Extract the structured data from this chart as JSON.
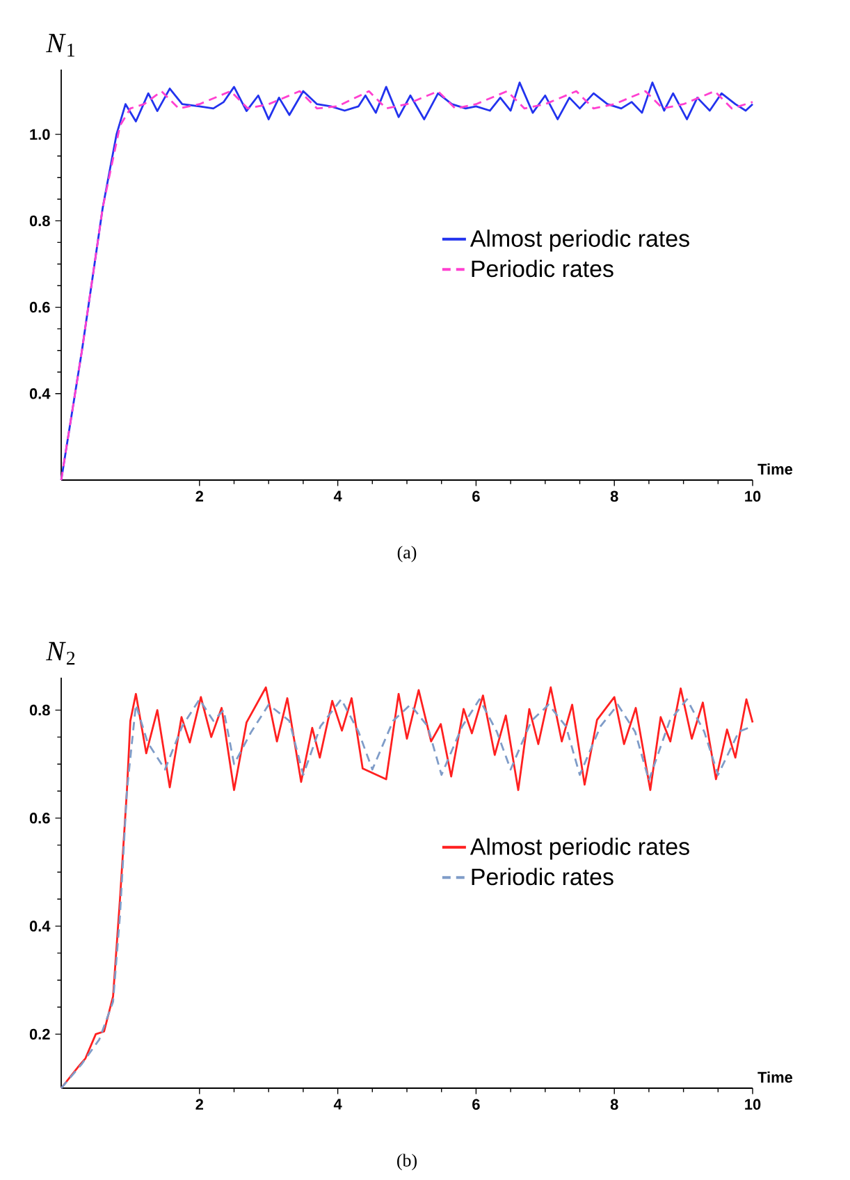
{
  "chart_data": [
    {
      "type": "line",
      "ylabel": "*N*$_{1}$",
      "xlabel": "Time",
      "annotations": [
        "(a)"
      ],
      "xlim": [
        0,
        10
      ],
      "ylim": [
        0.2,
        1.15
      ],
      "xticks": [
        2,
        4,
        6,
        8,
        10
      ],
      "yticks": [
        0.4,
        0.6,
        0.8,
        {
          "value": 1.0,
          "label": "1.0"
        }
      ],
      "legend": "right",
      "grid": false,
      "marker": "none",
      "series": [
        {
          "name": "Almost periodic rates",
          "color": "#2233ee",
          "line_style": "solid",
          "x": [
            0,
            0.3,
            0.6,
            0.8,
            0.93,
            1.08,
            1.26,
            1.39,
            1.57,
            1.75,
            2.0,
            2.2,
            2.35,
            2.5,
            2.68,
            2.85,
            3.0,
            3.15,
            3.3,
            3.5,
            3.7,
            3.9,
            4.1,
            4.3,
            4.4,
            4.55,
            4.7,
            4.88,
            5.05,
            5.25,
            5.45,
            5.65,
            5.85,
            6.0,
            6.2,
            6.35,
            6.5,
            6.63,
            6.82,
            7.0,
            7.18,
            7.35,
            7.5,
            7.7,
            7.9,
            8.1,
            8.25,
            8.4,
            8.55,
            8.72,
            8.85,
            9.05,
            9.2,
            9.38,
            9.55,
            9.75,
            9.9,
            10
          ],
          "values": [
            0.2,
            0.5,
            0.83,
            1.0,
            1.07,
            1.03,
            1.095,
            1.054,
            1.106,
            1.07,
            1.065,
            1.06,
            1.075,
            1.11,
            1.054,
            1.09,
            1.035,
            1.085,
            1.045,
            1.1,
            1.07,
            1.065,
            1.055,
            1.065,
            1.09,
            1.05,
            1.11,
            1.04,
            1.09,
            1.035,
            1.095,
            1.07,
            1.06,
            1.065,
            1.055,
            1.085,
            1.055,
            1.12,
            1.05,
            1.09,
            1.035,
            1.085,
            1.06,
            1.095,
            1.07,
            1.06,
            1.075,
            1.05,
            1.12,
            1.055,
            1.095,
            1.035,
            1.085,
            1.055,
            1.095,
            1.07,
            1.055,
            1.07
          ]
        },
        {
          "name": "Periodic rates",
          "color": "#ff40d0",
          "line_style": "dashed",
          "x": [
            0,
            0.3,
            0.6,
            0.85,
            1.0,
            1.2,
            1.45,
            1.7,
            2.0,
            2.45,
            2.7,
            3.0,
            3.45,
            3.7,
            4.0,
            4.45,
            4.7,
            5.0,
            5.45,
            5.7,
            6,
            6.45,
            6.7,
            7,
            7.45,
            7.7,
            8,
            8.45,
            8.7,
            9,
            9.45,
            9.7,
            10
          ],
          "values": [
            0.2,
            0.5,
            0.83,
            1.02,
            1.06,
            1.07,
            1.1,
            1.06,
            1.07,
            1.1,
            1.06,
            1.07,
            1.1,
            1.06,
            1.065,
            1.1,
            1.06,
            1.07,
            1.1,
            1.06,
            1.07,
            1.1,
            1.06,
            1.07,
            1.1,
            1.06,
            1.07,
            1.1,
            1.06,
            1.07,
            1.1,
            1.06,
            1.075
          ]
        }
      ]
    },
    {
      "type": "line",
      "ylabel": "*N*$_{2}$",
      "xlabel": "Time",
      "annotations": [
        "(b)"
      ],
      "xlim": [
        0,
        10
      ],
      "ylim": [
        0.1,
        0.86
      ],
      "xticks": [
        2,
        4,
        6,
        8,
        10
      ],
      "yticks": [
        0.2,
        0.4,
        0.6,
        0.8
      ],
      "legend": "right",
      "grid": false,
      "marker": "none",
      "series": [
        {
          "name": "Almost periodic rates",
          "color": "#ff2020",
          "line_style": "solid",
          "x": [
            0,
            0.25,
            0.35,
            0.5,
            0.62,
            0.75,
            0.85,
            0.95,
            1.0,
            1.08,
            1.23,
            1.39,
            1.57,
            1.74,
            1.86,
            2.02,
            2.17,
            2.32,
            2.5,
            2.68,
            2.96,
            3.12,
            3.27,
            3.47,
            3.63,
            3.74,
            3.92,
            4.06,
            4.2,
            4.36,
            4.7,
            4.88,
            5.0,
            5.17,
            5.35,
            5.49,
            5.64,
            5.82,
            5.94,
            6.1,
            6.27,
            6.43,
            6.61,
            6.77,
            6.9,
            7.08,
            7.24,
            7.39,
            7.57,
            7.75,
            8.0,
            8.14,
            8.31,
            8.52,
            8.67,
            8.81,
            8.96,
            9.12,
            9.28,
            9.47,
            9.63,
            9.75,
            9.91,
            10
          ],
          "values": [
            0.1,
            0.14,
            0.155,
            0.2,
            0.205,
            0.27,
            0.45,
            0.65,
            0.78,
            0.83,
            0.72,
            0.8,
            0.657,
            0.787,
            0.74,
            0.824,
            0.75,
            0.804,
            0.652,
            0.777,
            0.842,
            0.742,
            0.822,
            0.667,
            0.767,
            0.712,
            0.817,
            0.762,
            0.822,
            0.692,
            0.672,
            0.83,
            0.747,
            0.837,
            0.742,
            0.774,
            0.677,
            0.802,
            0.757,
            0.827,
            0.717,
            0.79,
            0.652,
            0.802,
            0.737,
            0.842,
            0.742,
            0.81,
            0.662,
            0.782,
            0.824,
            0.737,
            0.804,
            0.652,
            0.787,
            0.742,
            0.84,
            0.747,
            0.814,
            0.672,
            0.764,
            0.712,
            0.82,
            0.777
          ]
        },
        {
          "name": "Periodic rates",
          "color": "#7f9cc8",
          "line_style": "dashed",
          "x": [
            0,
            0.3,
            0.55,
            0.75,
            0.85,
            0.95,
            1.08,
            1.25,
            1.5,
            1.75,
            2.0,
            2.2,
            2.35,
            2.5,
            2.75,
            3.0,
            3.3,
            3.5,
            3.75,
            4.05,
            4.3,
            4.5,
            4.8,
            5.05,
            5.3,
            5.5,
            5.8,
            6.05,
            6.3,
            6.5,
            6.8,
            7.05,
            7.3,
            7.5,
            7.8,
            8.05,
            8.3,
            8.5,
            8.8,
            9.05,
            9.3,
            9.5,
            9.8,
            10
          ],
          "values": [
            0.1,
            0.145,
            0.19,
            0.26,
            0.42,
            0.65,
            0.81,
            0.74,
            0.69,
            0.77,
            0.82,
            0.78,
            0.8,
            0.7,
            0.76,
            0.81,
            0.78,
            0.68,
            0.77,
            0.82,
            0.76,
            0.69,
            0.78,
            0.81,
            0.77,
            0.68,
            0.77,
            0.82,
            0.76,
            0.69,
            0.78,
            0.81,
            0.77,
            0.68,
            0.77,
            0.81,
            0.76,
            0.67,
            0.78,
            0.82,
            0.76,
            0.68,
            0.76,
            0.77
          ]
        }
      ]
    }
  ]
}
